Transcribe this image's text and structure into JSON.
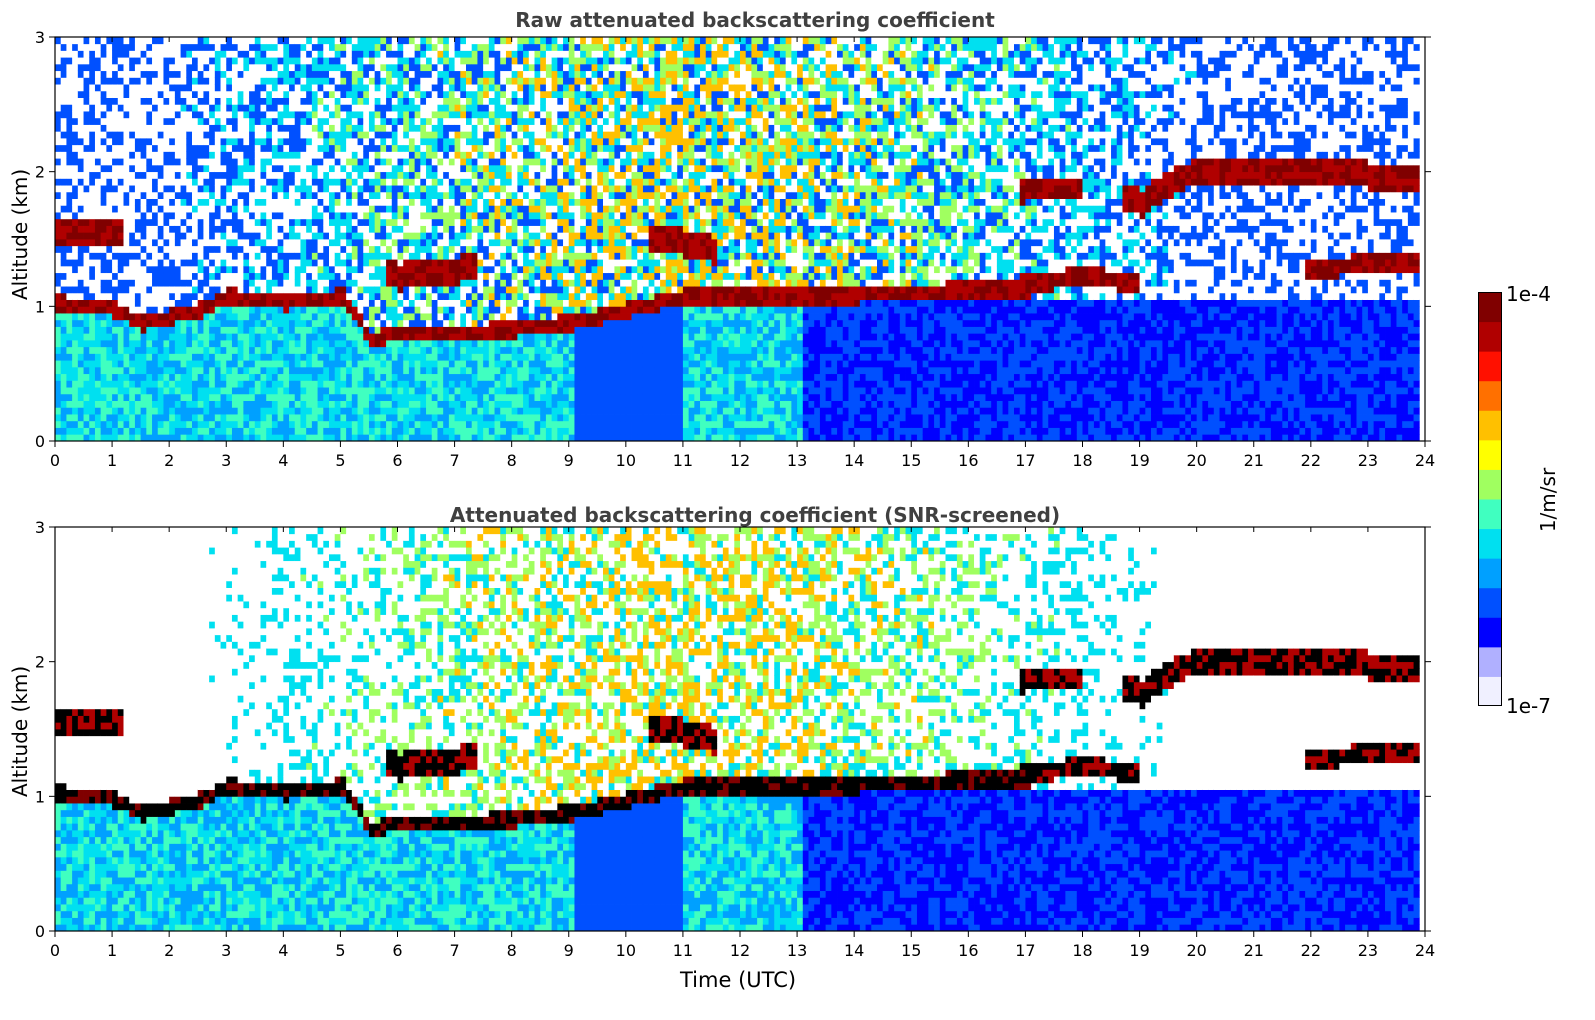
{
  "chart_data": [
    {
      "type": "heatmap",
      "title": "Raw attenuated backscattering coefficient",
      "xlabel": "",
      "ylabel": "Altitude (km)",
      "xlim": [
        0,
        24
      ],
      "ylim": [
        0,
        3
      ],
      "xticks": [
        "0",
        "1",
        "2",
        "3",
        "4",
        "5",
        "6",
        "7",
        "8",
        "9",
        "10",
        "11",
        "12",
        "13",
        "14",
        "15",
        "16",
        "17",
        "18",
        "19",
        "20",
        "21",
        "22",
        "23",
        "24"
      ],
      "yticks": [
        "0",
        "1",
        "2",
        "3"
      ],
      "features": {
        "boundary_layer_top_km": [
          [
            0,
            1.0
          ],
          [
            1,
            0.95
          ],
          [
            1.5,
            0.85
          ],
          [
            2.5,
            0.95
          ],
          [
            3,
            1.05
          ],
          [
            4,
            1.0
          ],
          [
            5,
            1.05
          ],
          [
            5.5,
            0.72
          ],
          [
            6,
            0.78
          ],
          [
            7,
            0.78
          ],
          [
            8,
            0.8
          ],
          [
            9,
            0.85
          ],
          [
            10,
            0.95
          ],
          [
            11,
            1.05
          ],
          [
            12,
            1.05
          ],
          [
            13,
            1.05
          ],
          [
            14,
            1.05
          ],
          [
            15,
            1.08
          ],
          [
            16,
            1.1
          ],
          [
            17,
            1.1
          ]
        ],
        "upper_cloud_layer_km": [
          [
            0,
            1.55
          ],
          [
            1,
            1.55
          ],
          [
            6,
            1.2
          ],
          [
            7,
            1.25
          ],
          [
            10.5,
            1.5
          ],
          [
            11.5,
            1.4
          ],
          [
            17,
            1.85
          ],
          [
            18,
            1.85
          ],
          [
            19,
            1.75
          ],
          [
            20,
            2.0
          ],
          [
            21,
            2.0
          ],
          [
            22,
            2.0
          ],
          [
            23,
            1.95
          ],
          [
            24,
            1.95
          ]
        ],
        "lower_cloud_layer_km": [
          [
            17,
            1.15
          ],
          [
            18,
            1.2
          ],
          [
            19,
            1.15
          ],
          [
            22,
            1.25
          ],
          [
            23,
            1.3
          ]
        ]
      },
      "colorbar": {
        "min_label": "1e-7",
        "max_label": "1e-4",
        "label": "1/m/sr",
        "scale": "log"
      }
    },
    {
      "type": "heatmap",
      "title": "Attenuated backscattering coefficient (SNR-screened)",
      "xlabel": "Time (UTC)",
      "ylabel": "Altitude (km)",
      "xlim": [
        0,
        24
      ],
      "ylim": [
        0,
        3
      ],
      "xticks": [
        "0",
        "1",
        "2",
        "3",
        "4",
        "5",
        "6",
        "7",
        "8",
        "9",
        "10",
        "11",
        "12",
        "13",
        "14",
        "15",
        "16",
        "17",
        "18",
        "19",
        "20",
        "21",
        "22",
        "23",
        "24"
      ],
      "yticks": [
        "0",
        "1",
        "2",
        "3"
      ],
      "features": {
        "boundary_layer_top_km": [
          [
            0,
            1.0
          ],
          [
            1,
            0.95
          ],
          [
            1.5,
            0.85
          ],
          [
            2.5,
            0.95
          ],
          [
            3,
            1.05
          ],
          [
            4,
            1.0
          ],
          [
            5,
            1.05
          ],
          [
            5.5,
            0.72
          ],
          [
            6,
            0.78
          ],
          [
            7,
            0.78
          ],
          [
            8,
            0.8
          ],
          [
            9,
            0.85
          ],
          [
            10,
            0.95
          ],
          [
            11,
            1.05
          ],
          [
            12,
            1.05
          ],
          [
            13,
            1.05
          ],
          [
            14,
            1.05
          ],
          [
            15,
            1.08
          ],
          [
            16,
            1.1
          ],
          [
            17,
            1.1
          ]
        ],
        "upper_cloud_layer_km": [
          [
            0,
            1.55
          ],
          [
            1,
            1.55
          ],
          [
            6,
            1.2
          ],
          [
            7,
            1.25
          ],
          [
            10.5,
            1.5
          ],
          [
            11.5,
            1.4
          ],
          [
            17,
            1.85
          ],
          [
            18,
            1.85
          ],
          [
            19,
            1.75
          ],
          [
            20,
            2.0
          ],
          [
            21,
            2.0
          ],
          [
            22,
            2.0
          ],
          [
            23,
            1.95
          ],
          [
            24,
            1.95
          ]
        ],
        "lower_cloud_layer_km": [
          [
            17,
            1.15
          ],
          [
            18,
            1.2
          ],
          [
            19,
            1.15
          ],
          [
            22,
            1.25
          ],
          [
            23,
            1.3
          ]
        ]
      },
      "colorbar": {
        "min_label": "1e-7",
        "max_label": "1e-4",
        "label": "1/m/sr",
        "scale": "log"
      }
    }
  ],
  "colors": {
    "colormap": [
      "#f0f0ff",
      "#b0b0ff",
      "#0000ff",
      "#0050ff",
      "#00a0ff",
      "#00e0f0",
      "#40ffc0",
      "#a0ff60",
      "#ffff00",
      "#ffc000",
      "#ff7000",
      "#ff1000",
      "#b00000",
      "#800000"
    ],
    "cloud_core": "#000000",
    "title_color": "#404040"
  },
  "labels": {
    "panel1_title": "Raw attenuated backscattering coefficient",
    "panel2_title": "Attenuated backscattering coefficient (SNR-screened)",
    "ylabel": "Altitude (km)",
    "xlabel": "Time (UTC)",
    "colorbar_max": "1e-4",
    "colorbar_min": "1e-7",
    "colorbar_unit": "1/m/sr"
  }
}
